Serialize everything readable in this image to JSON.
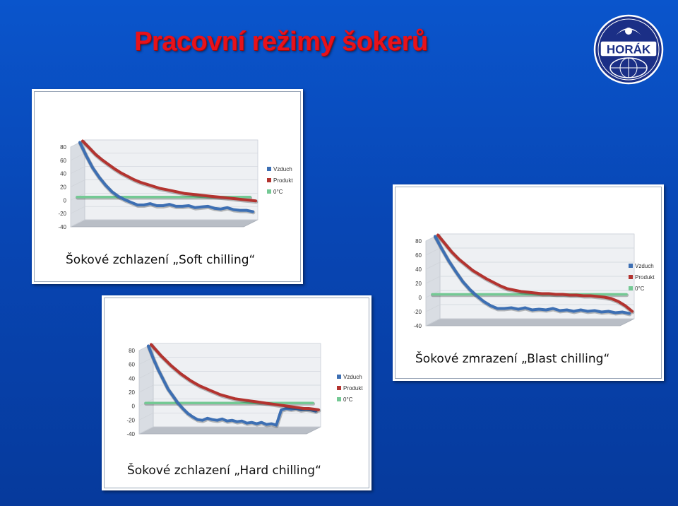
{
  "slide": {
    "title": "Pracovní režimy šokerů",
    "logo_text": "HORÁK"
  },
  "colors": {
    "air": "#3d6fb3",
    "product": "#b3332f",
    "zero": "#74c994",
    "title": "#e8121a"
  },
  "chart_data": [
    {
      "type": "line",
      "caption": "Šokové zchlazení „Soft chilling“",
      "style": "3d",
      "yticks": [
        "80",
        "60",
        "40",
        "20",
        "0",
        "-20",
        "-40"
      ],
      "ylim": [
        -40,
        80
      ],
      "legend": [
        "Vzduch",
        "Produkt",
        "0°C"
      ],
      "legend_position": "right",
      "series": [
        {
          "name": "Vzduch",
          "values": [
            80,
            60,
            42,
            28,
            16,
            6,
            -1,
            -6,
            -10,
            -14,
            -14,
            -12,
            -15,
            -15,
            -13,
            -16,
            -16,
            -15,
            -18,
            -17,
            -16,
            -19,
            -20,
            -18,
            -21,
            -22,
            -22,
            -24
          ]
        },
        {
          "name": "Produkt",
          "values": [
            80,
            70,
            60,
            52,
            45,
            38,
            32,
            27,
            22,
            18,
            15,
            12,
            9,
            7,
            5,
            3,
            1,
            0,
            -1,
            -2,
            -3,
            -4,
            -5,
            -6,
            -7,
            -8,
            -9,
            -10
          ]
        },
        {
          "name": "0°C",
          "values": [
            0,
            0
          ]
        }
      ]
    },
    {
      "type": "line",
      "caption": "Šokové zmrazení „Blast chilling“",
      "style": "3d",
      "yticks": [
        "80",
        "60",
        "40",
        "20",
        "0",
        "-20",
        "-40"
      ],
      "ylim": [
        -40,
        80
      ],
      "legend": [
        "Vzduch",
        "Produkt",
        "0°C"
      ],
      "legend_position": "right",
      "series": [
        {
          "name": "Vzduch",
          "values": [
            80,
            62,
            45,
            30,
            16,
            5,
            -4,
            -12,
            -18,
            -22,
            -22,
            -21,
            -23,
            -21,
            -24,
            -23,
            -24,
            -22,
            -25,
            -24,
            -26,
            -24,
            -26,
            -25,
            -27,
            -26,
            -28,
            -27,
            -29
          ]
        },
        {
          "name": "Produkt",
          "values": [
            80,
            68,
            56,
            46,
            38,
            30,
            24,
            18,
            13,
            8,
            4,
            2,
            0,
            -1,
            -2,
            -3,
            -3,
            -4,
            -4,
            -5,
            -5,
            -6,
            -6,
            -7,
            -8,
            -10,
            -14,
            -20,
            -28
          ]
        },
        {
          "name": "0°C",
          "values": [
            0,
            0
          ]
        }
      ]
    },
    {
      "type": "line",
      "caption": "Šokové zchlazení „Hard chilling“",
      "style": "3d",
      "yticks": [
        "80",
        "60",
        "40",
        "20",
        "0",
        "-20",
        "-40"
      ],
      "ylim": [
        -40,
        80
      ],
      "legend": [
        "Vzduch",
        "Produkt",
        "0°C"
      ],
      "legend_position": "right",
      "series": [
        {
          "name": "Vzduch",
          "values": [
            80,
            62,
            46,
            32,
            18,
            8,
            -2,
            -10,
            -17,
            -22,
            -26,
            -27,
            -24,
            -26,
            -27,
            -25,
            -28,
            -27,
            -29,
            -28,
            -31,
            -30,
            -32,
            -30,
            -33,
            -32,
            -34,
            -12,
            -10,
            -11,
            -10,
            -12,
            -11,
            -12,
            -14
          ]
        },
        {
          "name": "Produkt",
          "values": [
            80,
            72,
            64,
            57,
            50,
            44,
            38,
            33,
            28,
            24,
            20,
            17,
            14,
            11,
            8,
            6,
            4,
            2,
            1,
            0,
            -1,
            -2,
            -3,
            -4,
            -5,
            -6,
            -7,
            -8,
            -9,
            -10,
            -11,
            -12,
            -12,
            -13,
            -14
          ]
        },
        {
          "name": "0°C",
          "values": [
            0,
            0
          ]
        }
      ]
    }
  ]
}
